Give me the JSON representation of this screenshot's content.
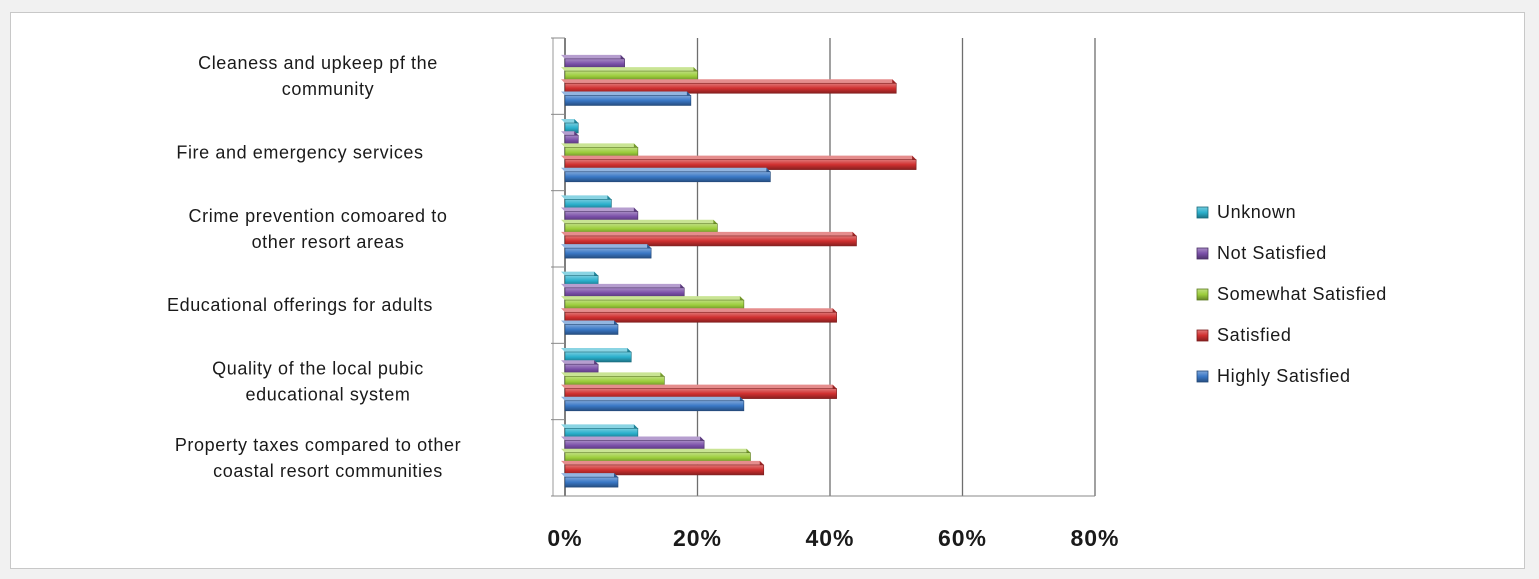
{
  "chart_data": {
    "type": "bar",
    "orientation": "horizontal",
    "style": "3d-clustered",
    "categories": [
      [
        "Cleaness and upkeep pf the",
        "community"
      ],
      [
        "Fire and emergency services"
      ],
      [
        "Crime prevention comoared to",
        "other resort areas"
      ],
      [
        "Educational offerings for adults"
      ],
      [
        "Quality of the local pubic",
        "educational system"
      ],
      [
        "Property taxes compared to other",
        "coastal resort communities"
      ]
    ],
    "series": [
      {
        "name": "Unknown",
        "color": "#2ab0cc",
        "values": [
          0,
          2,
          7,
          5,
          10,
          11
        ]
      },
      {
        "name": "Not Satisfied",
        "color": "#7a4fa8",
        "values": [
          9,
          2,
          11,
          18,
          5,
          21
        ]
      },
      {
        "name": "Somewhat Satisfied",
        "color": "#9ccd3c",
        "values": [
          20,
          11,
          23,
          27,
          15,
          28
        ]
      },
      {
        "name": "Satisfied",
        "color": "#d03030",
        "values": [
          50,
          53,
          44,
          41,
          41,
          30
        ]
      },
      {
        "name": "Highly Satisfied",
        "color": "#3a78c6",
        "values": [
          19,
          31,
          13,
          8,
          27,
          8
        ]
      }
    ],
    "xlim": [
      0,
      80
    ],
    "xticks": [
      "0%",
      "20%",
      "40%",
      "60%",
      "80%"
    ],
    "grid": true,
    "legend_position": "right"
  }
}
